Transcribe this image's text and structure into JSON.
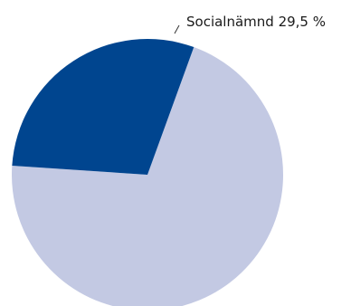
{
  "chart_data": {
    "type": "pie",
    "slices": [
      {
        "label": "Socialnämnd",
        "value": 29.5,
        "display": "Socialnämnd 29,5 %",
        "color": "#00458f"
      },
      {
        "label": "",
        "value": 70.5,
        "display": "",
        "color": "#c3c9e3"
      }
    ]
  }
}
